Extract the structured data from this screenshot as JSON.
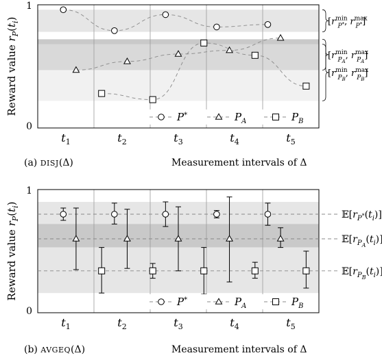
{
  "chart_data": [
    {
      "type": "line",
      "ylabel": "Reward value r_P(t_i)",
      "xlabel": "Measurement intervals of Δ",
      "caption_prefix": "(a) ",
      "caption_name": "DISJ",
      "caption_suffix": "(Δ)",
      "ylim": [
        0,
        1
      ],
      "yticks": [
        "0",
        "1"
      ],
      "categories": [
        "t1",
        "t2",
        "t3",
        "t4",
        "t5"
      ],
      "grid": "vertical separators",
      "legend_position": "bottom-right",
      "bands": [
        {
          "name": "P*",
          "range": [
            0.78,
            0.96
          ],
          "annotation": "[r_{P*}^min, r_{P*}^max]"
        },
        {
          "name": "P_A",
          "range": [
            0.47,
            0.72
          ],
          "annotation": "[r_{P_A}^min, r_{P_A}^max]"
        },
        {
          "name": "P_B",
          "range": [
            0.22,
            0.68
          ],
          "annotation": "[r_{P_B}^min, r_{P_B}^max]"
        }
      ],
      "series": [
        {
          "name": "P*",
          "marker": "circle",
          "points": [
            [
              0.5,
              0.96
            ],
            [
              1.5,
              0.79
            ],
            [
              2.5,
              0.92
            ],
            [
              3.5,
              0.82
            ],
            [
              4.5,
              0.84
            ]
          ]
        },
        {
          "name": "P_A",
          "marker": "triangle",
          "points": [
            [
              0.75,
              0.47
            ],
            [
              1.75,
              0.54
            ],
            [
              2.75,
              0.6
            ],
            [
              3.75,
              0.63
            ],
            [
              4.75,
              0.73
            ]
          ]
        },
        {
          "name": "P_B",
          "marker": "square",
          "points": [
            [
              1.25,
              0.28
            ],
            [
              2.25,
              0.23
            ],
            [
              3.25,
              0.69
            ],
            [
              4.25,
              0.59
            ],
            [
              5.25,
              0.34
            ]
          ]
        }
      ]
    },
    {
      "type": "errorbar",
      "ylabel": "Reward value r_P(t_i)",
      "xlabel": "Measurement intervals of Δ",
      "caption_prefix": "(b) ",
      "caption_name": "AVGEQ",
      "caption_suffix": "(Δ)",
      "ylim": [
        0,
        1
      ],
      "yticks": [
        "0",
        "1"
      ],
      "categories": [
        "t1",
        "t2",
        "t3",
        "t4",
        "t5"
      ],
      "grid": "vertical separators",
      "legend_position": "bottom-right",
      "bands": [
        {
          "name": "P*",
          "range": [
            0.7,
            0.9
          ]
        },
        {
          "name": "P_A",
          "range": [
            0.53,
            0.72
          ]
        },
        {
          "name": "P_B",
          "range": [
            0.16,
            0.53
          ]
        }
      ],
      "means": [
        {
          "name": "P*",
          "value": 0.8,
          "annotation": "E[r_{P*}(t_i)]"
        },
        {
          "name": "P_A",
          "value": 0.6,
          "annotation": "E[r_{P_A}(t_i)]"
        },
        {
          "name": "P_B",
          "value": 0.34,
          "annotation": "E[r_{P_B}(t_i)]"
        }
      ],
      "series": [
        {
          "name": "P*",
          "marker": "circle",
          "points": [
            [
              0.5,
              0.8,
              0.75,
              0.85
            ],
            [
              1.5,
              0.8,
              0.72,
              0.89
            ],
            [
              2.5,
              0.8,
              0.7,
              0.9
            ],
            [
              3.5,
              0.8,
              0.77,
              0.83
            ],
            [
              4.5,
              0.8,
              0.71,
              0.89
            ]
          ]
        },
        {
          "name": "P_A",
          "marker": "triangle",
          "points": [
            [
              0.75,
              0.6,
              0.35,
              0.85
            ],
            [
              1.75,
              0.6,
              0.36,
              0.84
            ],
            [
              2.75,
              0.6,
              0.34,
              0.86
            ],
            [
              3.75,
              0.6,
              0.25,
              0.94
            ],
            [
              4.75,
              0.6,
              0.53,
              0.69
            ]
          ]
        },
        {
          "name": "P_B",
          "marker": "square",
          "points": [
            [
              1.25,
              0.34,
              0.16,
              0.53
            ],
            [
              2.25,
              0.34,
              0.28,
              0.4
            ],
            [
              3.25,
              0.34,
              0.15,
              0.53
            ],
            [
              4.25,
              0.34,
              0.28,
              0.41
            ],
            [
              5.25,
              0.34,
              0.2,
              0.5
            ]
          ]
        }
      ]
    }
  ]
}
